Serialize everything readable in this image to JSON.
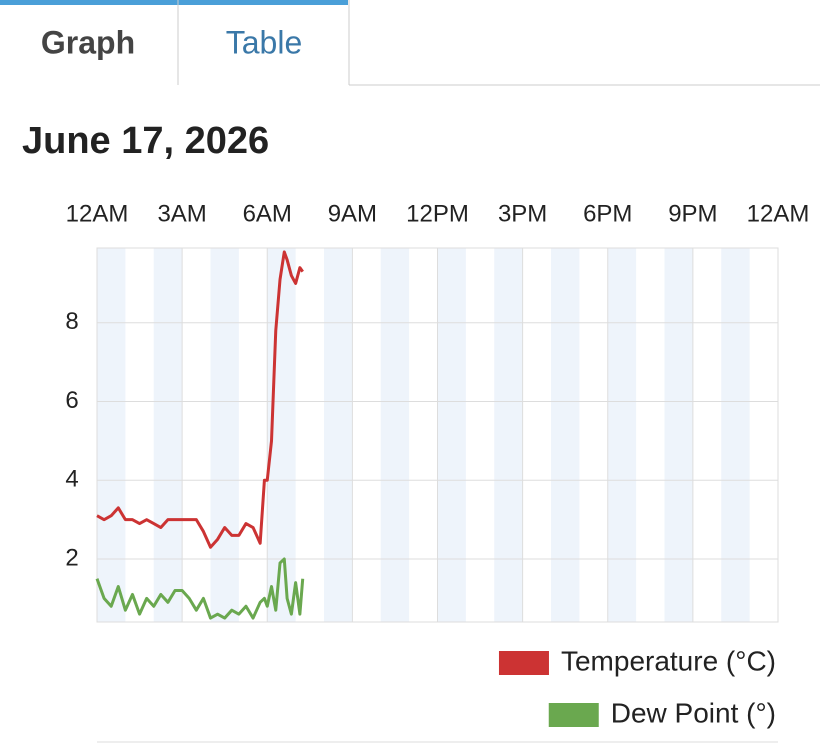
{
  "tabs": [
    "Graph",
    "Table"
  ],
  "chart_data": {
    "type": "line",
    "title": "June 17, 2026",
    "x": [
      0,
      0.25,
      0.5,
      0.75,
      1,
      1.25,
      1.5,
      1.75,
      2,
      2.25,
      2.5,
      2.75,
      3,
      3.25,
      3.5,
      3.75,
      4,
      4.25,
      4.5,
      4.75,
      5,
      5.25,
      5.5,
      5.75,
      5.9,
      6.0,
      6.15,
      6.3,
      6.45,
      6.6,
      6.7,
      6.85,
      7.0,
      7.15,
      7.25
    ],
    "series": [
      {
        "name": "Temperature (°C)",
        "color": "#cc3333",
        "values": [
          3.1,
          3.0,
          3.1,
          3.3,
          3.0,
          3.0,
          2.9,
          3.0,
          2.9,
          2.8,
          3.0,
          3.0,
          3.0,
          3.0,
          3.0,
          2.7,
          2.3,
          2.5,
          2.8,
          2.6,
          2.6,
          2.9,
          2.8,
          2.4,
          4.0,
          4.0,
          5.0,
          7.8,
          9.1,
          9.8,
          9.6,
          9.2,
          9.0,
          9.4,
          9.3
        ]
      },
      {
        "name": "Dew Point (°)",
        "color": "#6aa84f",
        "values": [
          1.5,
          1.0,
          0.8,
          1.3,
          0.7,
          1.1,
          0.6,
          1.0,
          0.8,
          1.1,
          0.9,
          1.2,
          1.2,
          1.0,
          0.7,
          1.0,
          0.5,
          0.6,
          0.5,
          0.7,
          0.6,
          0.8,
          0.5,
          0.9,
          1.0,
          0.8,
          1.3,
          0.7,
          1.9,
          2.0,
          1.0,
          0.6,
          1.4,
          0.6,
          1.5
        ]
      }
    ],
    "xlim": [
      0,
      24
    ],
    "xticks": [
      {
        "value": 0,
        "label": "12AM"
      },
      {
        "value": 3,
        "label": "3AM"
      },
      {
        "value": 6,
        "label": "6AM"
      },
      {
        "value": 9,
        "label": "9AM"
      },
      {
        "value": 12,
        "label": "12PM"
      },
      {
        "value": 15,
        "label": "3PM"
      },
      {
        "value": 18,
        "label": "6PM"
      },
      {
        "value": 21,
        "label": "9PM"
      },
      {
        "value": 24,
        "label": "12AM"
      }
    ],
    "ylim": [
      0.4,
      9.9
    ],
    "yticks": [
      2,
      4,
      6,
      8
    ],
    "grid": true,
    "legend": "bottom-right"
  }
}
